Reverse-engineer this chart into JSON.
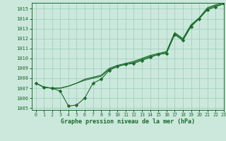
{
  "title": "Graphe pression niveau de la mer (hPa)",
  "bg_color": "#cce8dd",
  "grid_color": "#99ccbb",
  "line_color": "#1a6b2a",
  "xlim": [
    -0.5,
    23
  ],
  "ylim": [
    1004.8,
    1015.6
  ],
  "xticks": [
    0,
    1,
    2,
    3,
    4,
    5,
    6,
    7,
    8,
    9,
    10,
    11,
    12,
    13,
    14,
    15,
    16,
    17,
    18,
    19,
    20,
    21,
    22,
    23
  ],
  "yticks": [
    1005,
    1006,
    1007,
    1008,
    1009,
    1010,
    1011,
    1012,
    1013,
    1014,
    1015
  ],
  "series_with_markers": [
    1007.5,
    1007.1,
    1007.0,
    1006.7,
    1005.2,
    1005.3,
    1006.0,
    1007.5,
    1007.9,
    1008.8,
    1009.2,
    1009.4,
    1009.5,
    1009.8,
    1010.1,
    1010.4,
    1010.5,
    1012.4,
    1011.8,
    1013.2,
    1014.0,
    1014.9,
    1015.2,
    1015.5
  ],
  "series_upper1": [
    1007.5,
    1007.1,
    1007.0,
    1007.0,
    1007.2,
    1007.5,
    1007.8,
    1008.0,
    1008.2,
    1008.9,
    1009.2,
    1009.4,
    1009.6,
    1009.9,
    1010.2,
    1010.4,
    1010.6,
    1012.5,
    1011.9,
    1013.3,
    1014.0,
    1015.0,
    1015.3,
    1015.5
  ],
  "series_upper2": [
    1007.5,
    1007.1,
    1007.0,
    1007.0,
    1007.2,
    1007.5,
    1007.9,
    1008.1,
    1008.3,
    1009.0,
    1009.3,
    1009.5,
    1009.7,
    1010.0,
    1010.3,
    1010.5,
    1010.7,
    1012.6,
    1012.0,
    1013.4,
    1014.1,
    1015.1,
    1015.4,
    1015.6
  ],
  "marker": "D",
  "marker_size": 2.5,
  "linewidth": 0.8
}
